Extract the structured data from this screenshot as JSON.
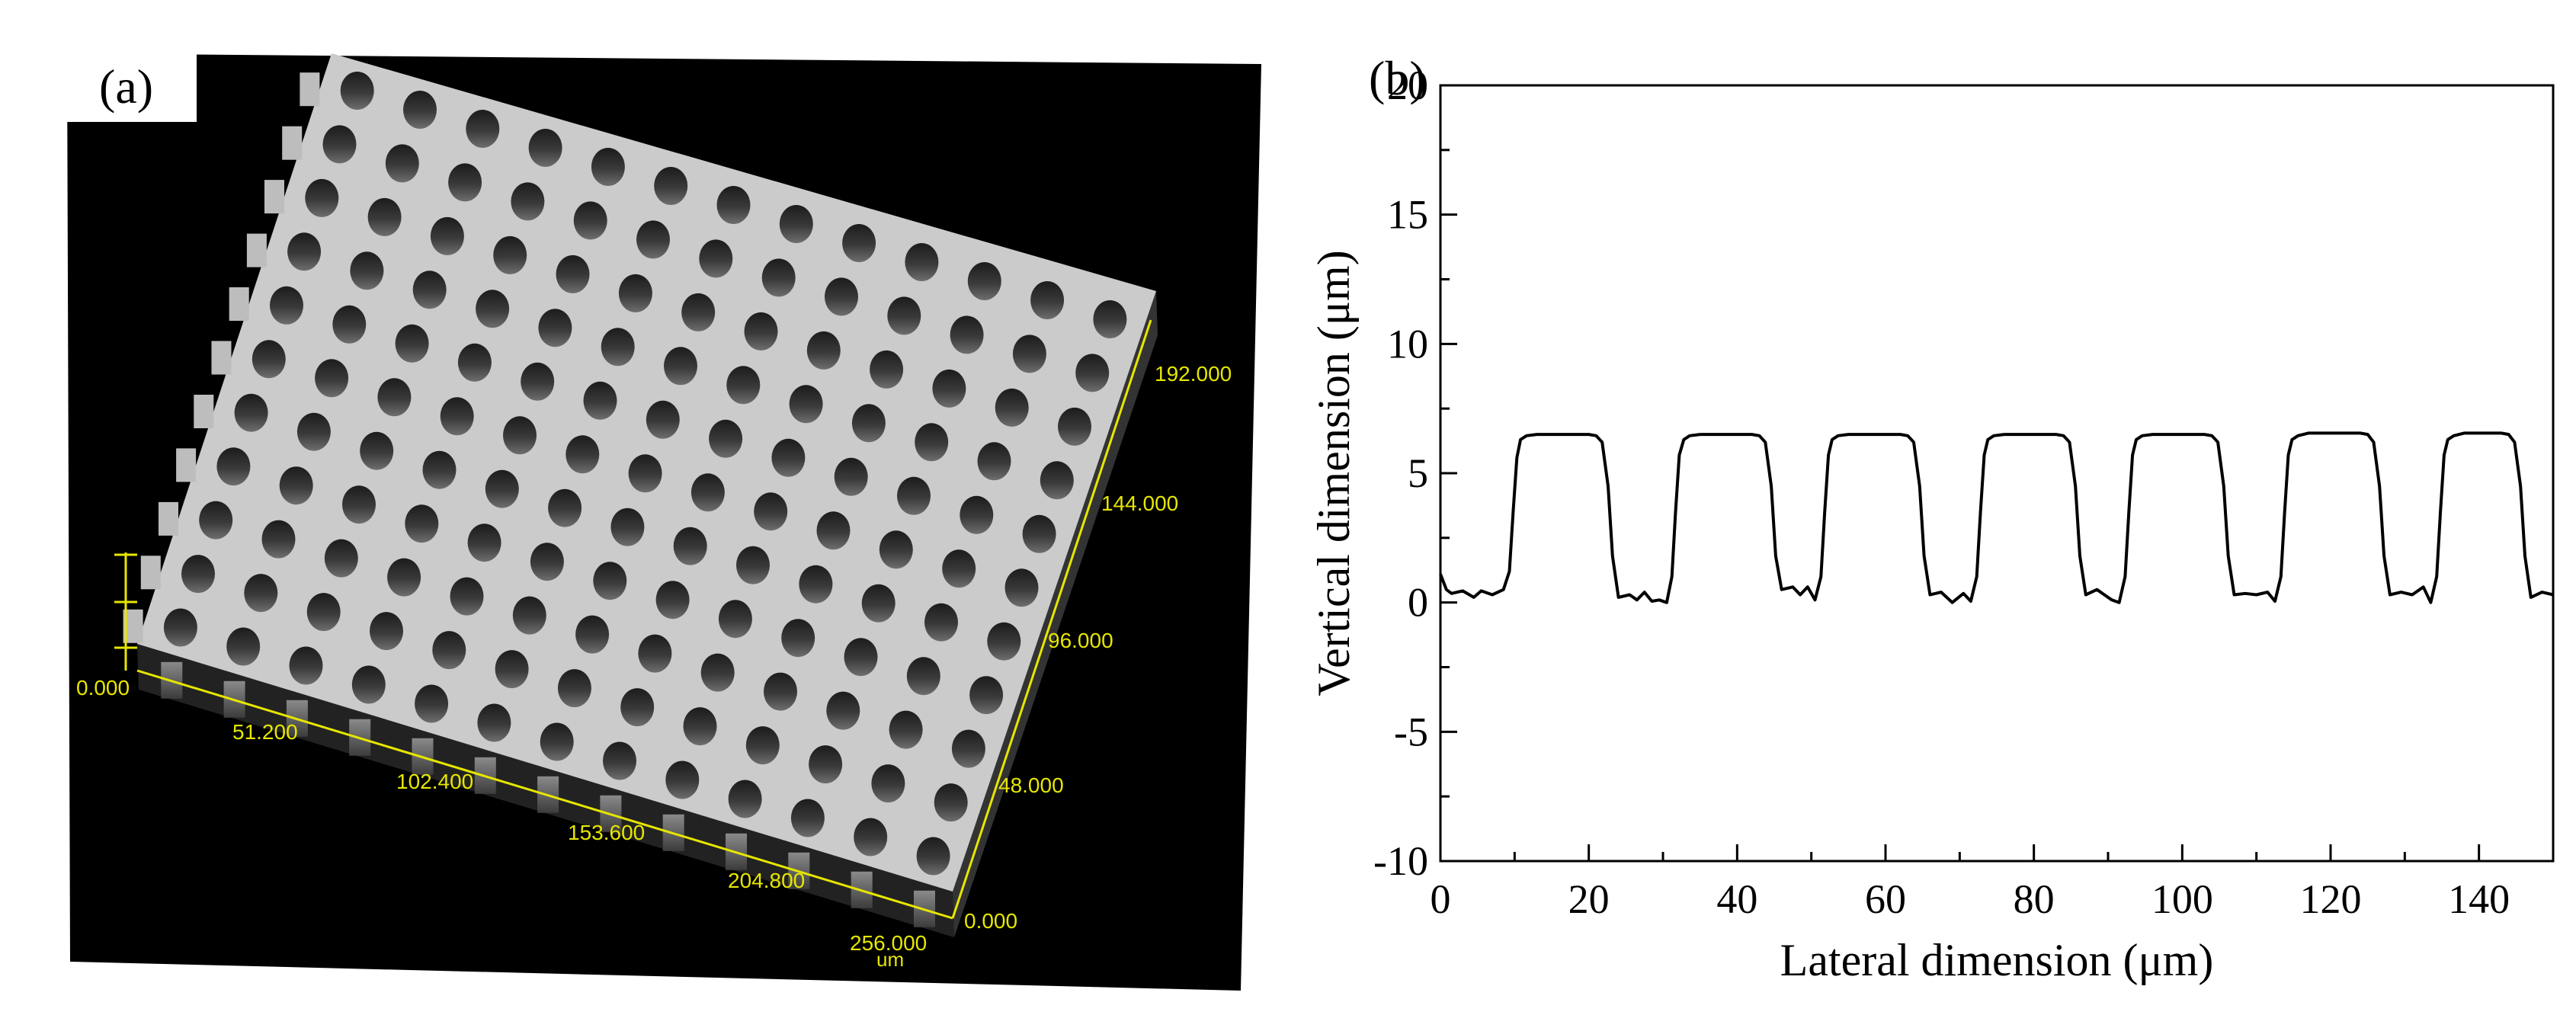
{
  "panel_a": {
    "label": "(a)",
    "image_description_name": "3d-microscope-topography",
    "x_axis_ticks": [
      "0.000",
      "51.200",
      "102.400",
      "153.600",
      "204.800",
      "256.000"
    ],
    "y_axis_ticks": [
      "0.000",
      "48.000",
      "96.000",
      "144.000",
      "192.000"
    ],
    "unit": "um",
    "axis_color": "#e6e600",
    "grid": {
      "rows": 11,
      "cols": 13
    }
  },
  "chart_data": {
    "type": "line",
    "panel_label": "(b)",
    "title": "",
    "xlabel": "Lateral dimension (μm)",
    "ylabel": "Vertical dimension (μm)",
    "xlim": [
      0,
      150
    ],
    "ylim": [
      -10,
      20
    ],
    "xticks": [
      0,
      20,
      40,
      60,
      80,
      100,
      120,
      140
    ],
    "yticks": [
      -10,
      -5,
      0,
      5,
      10,
      15,
      20
    ],
    "grid": false,
    "series": [
      {
        "name": "profile",
        "color": "#000000",
        "x": [
          0,
          0.8,
          1.5,
          3,
          4.5,
          5.5,
          7,
          8.5,
          9.3,
          9.8,
          10.3,
          10.8,
          11.6,
          13,
          20,
          21,
          21.8,
          22.6,
          23.2,
          24,
          25.5,
          26.5,
          27.5,
          28.5,
          29.5,
          30.5,
          31.2,
          31.7,
          32.2,
          32.8,
          33.6,
          35,
          42,
          43,
          43.8,
          44.6,
          45.2,
          46,
          47.5,
          48.5,
          49.5,
          50.5,
          51.3,
          51.8,
          52.3,
          52.8,
          53.6,
          55,
          62,
          63,
          63.8,
          64.6,
          65.2,
          66,
          67.5,
          69,
          70.5,
          71.5,
          72.3,
          72.8,
          73.3,
          73.8,
          74.6,
          76,
          83,
          84,
          84.8,
          85.6,
          86.2,
          87,
          88.5,
          89.5,
          90.5,
          91.5,
          92.3,
          92.8,
          93.3,
          93.8,
          94.6,
          96,
          103,
          104,
          104.8,
          105.6,
          106.2,
          107,
          108.5,
          110,
          111.5,
          112.5,
          113.3,
          113.8,
          114.3,
          114.8,
          115.6,
          117,
          124,
          125,
          125.8,
          126.6,
          127.2,
          128,
          129.5,
          131,
          132.5,
          133.5,
          134.3,
          134.8,
          135.3,
          135.8,
          136.6,
          138,
          143,
          144,
          144.8,
          145.6,
          146.2,
          147,
          148.5,
          150
        ],
        "y": [
          1.1,
          0.5,
          0.35,
          0.45,
          0.2,
          0.45,
          0.3,
          0.5,
          1.2,
          3.5,
          5.6,
          6.3,
          6.45,
          6.5,
          6.5,
          6.45,
          6.2,
          4.5,
          1.8,
          0.2,
          0.3,
          0.1,
          0.4,
          0.05,
          0.1,
          0.0,
          1.0,
          3.5,
          5.7,
          6.3,
          6.45,
          6.5,
          6.5,
          6.45,
          6.2,
          4.5,
          1.8,
          0.5,
          0.6,
          0.3,
          0.6,
          0.1,
          1.0,
          3.5,
          5.7,
          6.3,
          6.45,
          6.5,
          6.5,
          6.45,
          6.2,
          4.5,
          1.8,
          0.3,
          0.4,
          0.0,
          0.35,
          0.05,
          1.0,
          3.5,
          5.7,
          6.3,
          6.45,
          6.5,
          6.5,
          6.45,
          6.2,
          4.5,
          1.8,
          0.3,
          0.5,
          0.3,
          0.1,
          0.0,
          1.0,
          3.5,
          5.7,
          6.3,
          6.45,
          6.5,
          6.5,
          6.45,
          6.2,
          4.5,
          1.8,
          0.3,
          0.35,
          0.3,
          0.4,
          0.05,
          1.0,
          3.5,
          5.7,
          6.3,
          6.45,
          6.55,
          6.55,
          6.5,
          6.2,
          4.5,
          1.8,
          0.3,
          0.4,
          0.3,
          0.6,
          0.0,
          1.0,
          3.5,
          5.7,
          6.3,
          6.45,
          6.55,
          6.55,
          6.5,
          6.2,
          4.5,
          1.8,
          0.2,
          0.4,
          0.3
        ]
      }
    ]
  }
}
